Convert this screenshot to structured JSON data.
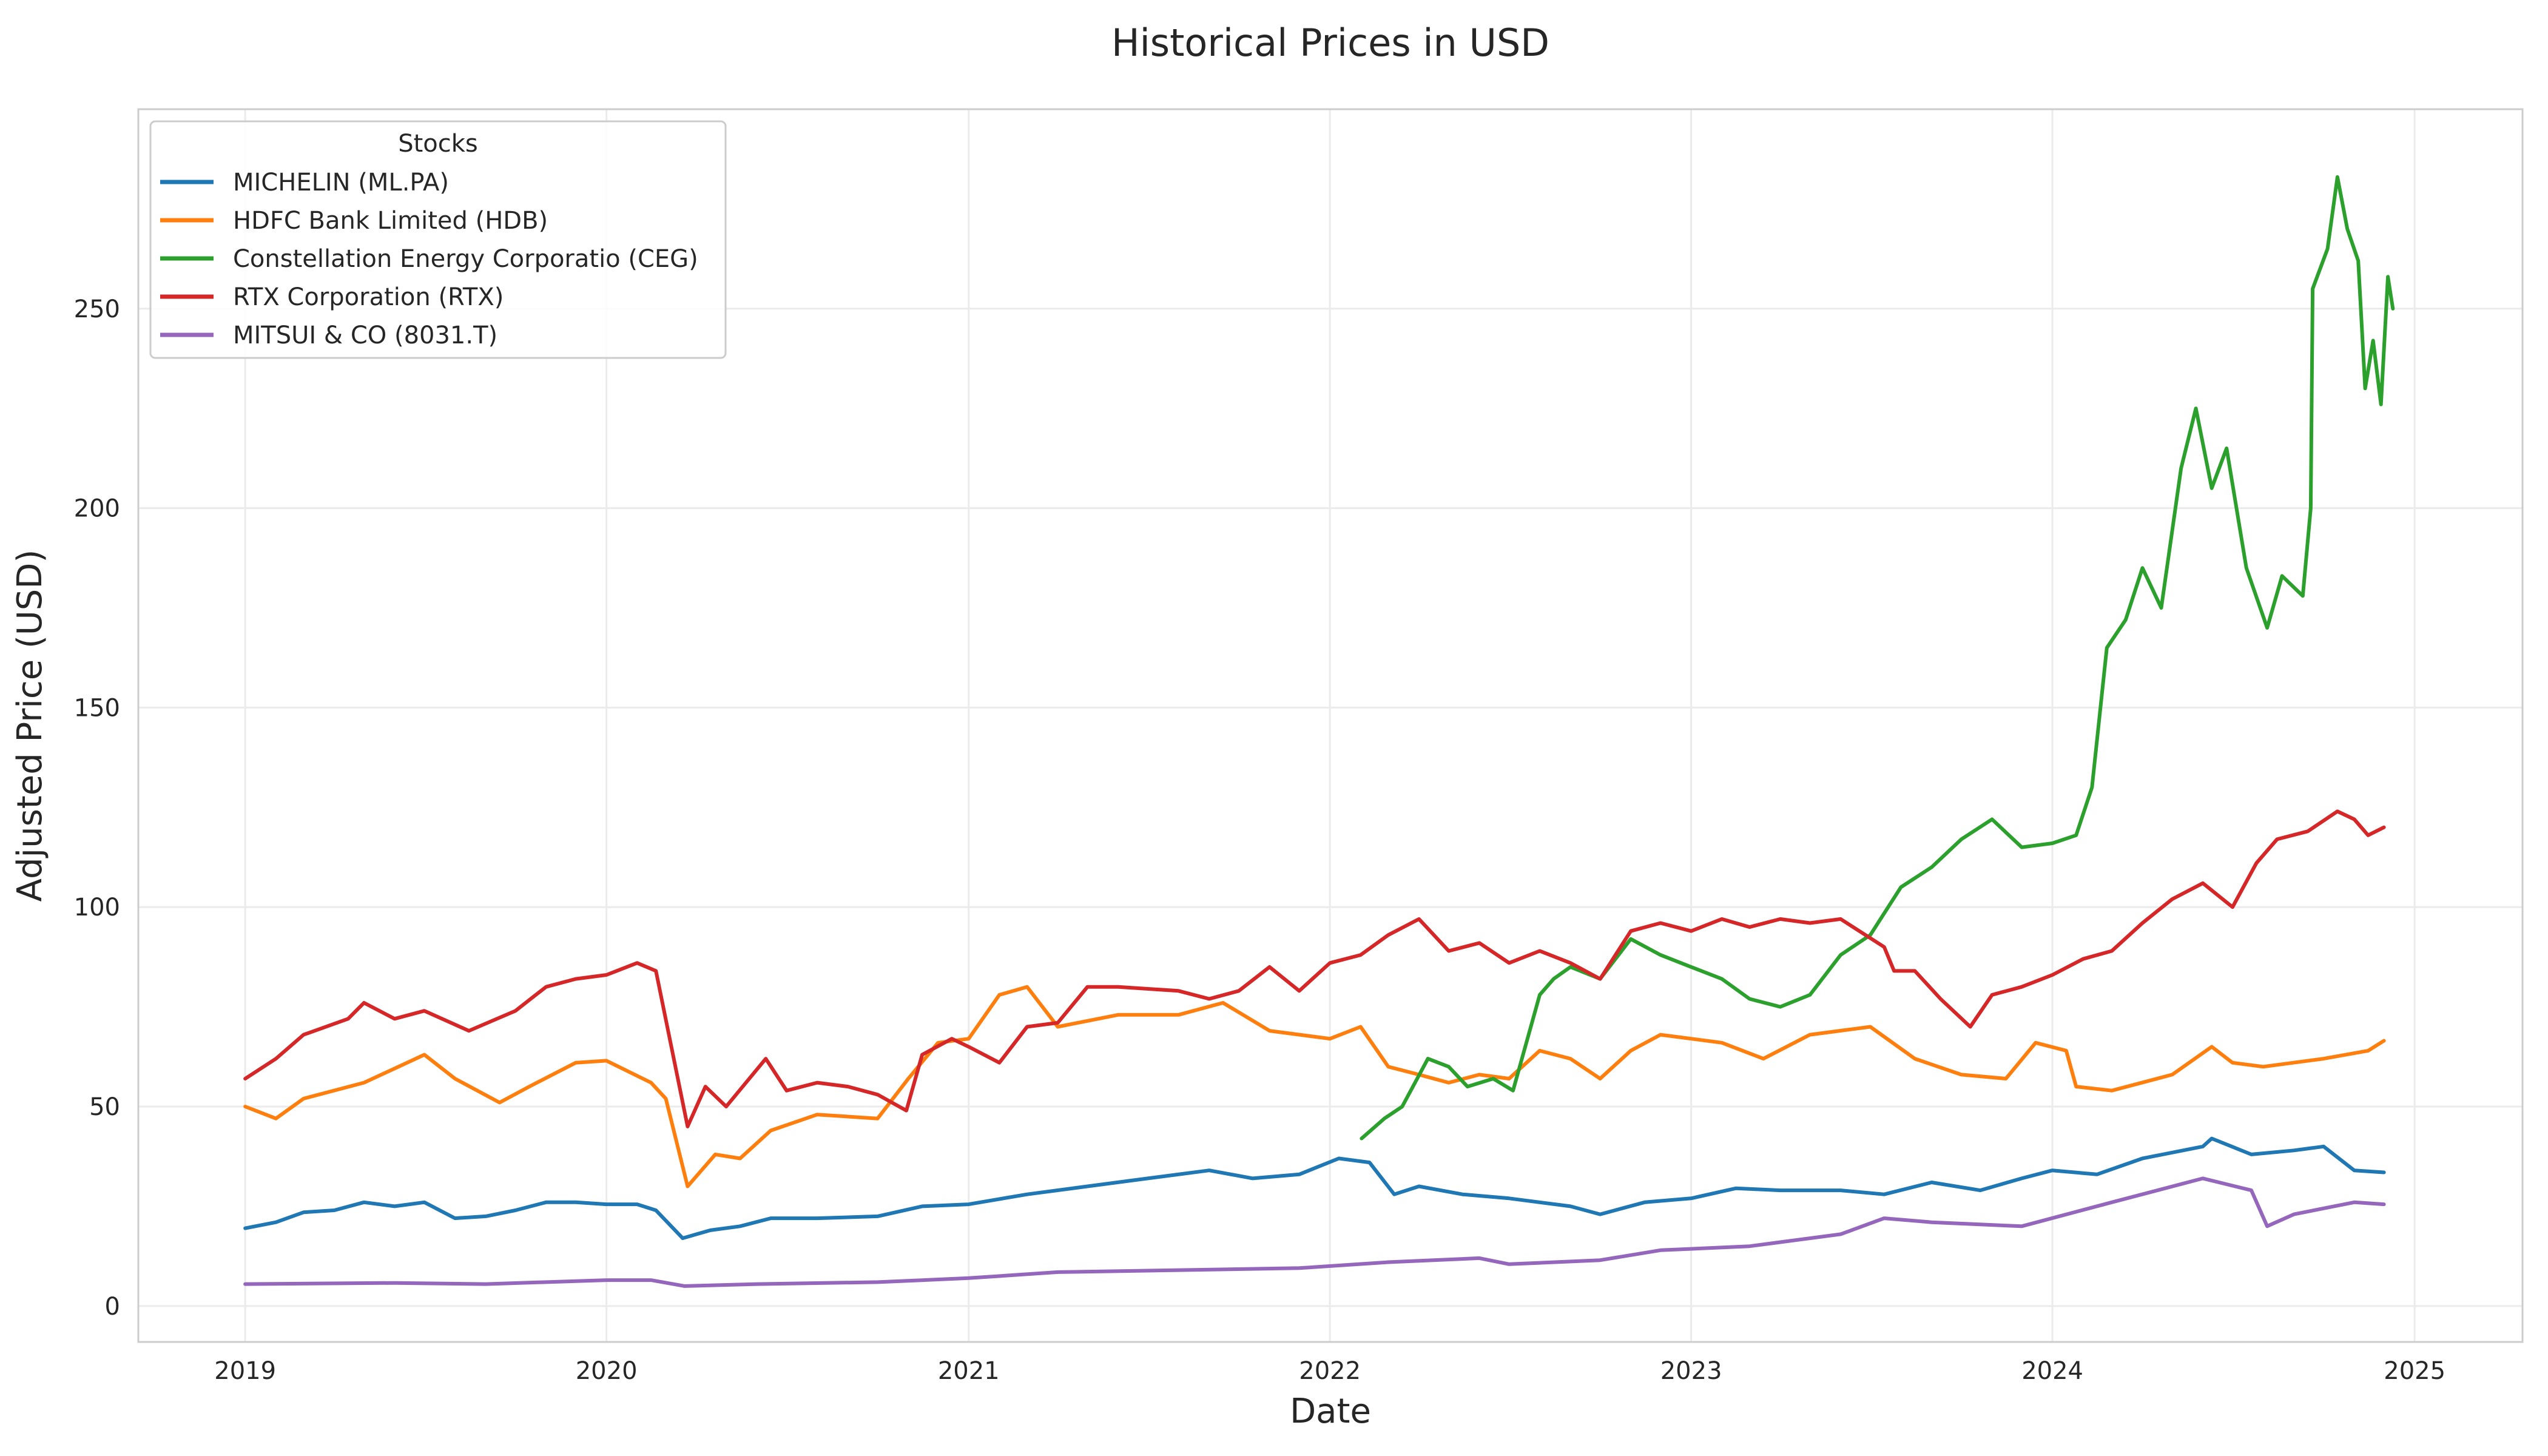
{
  "chart_data": {
    "type": "line",
    "title": "Historical Prices in USD",
    "xlabel": "Date",
    "ylabel": "Adjusted Price (USD)",
    "x_ticks": [
      "2019",
      "2020",
      "2021",
      "2022",
      "2023",
      "2024",
      "2025"
    ],
    "y_ticks": [
      "0",
      "50",
      "100",
      "150",
      "200",
      "250"
    ],
    "xlim": [
      "2018-09-15",
      "2025-04-20"
    ],
    "ylim": [
      -9,
      300
    ],
    "grid": true,
    "legend": {
      "title": "Stocks",
      "placement": "top-left"
    },
    "series": [
      {
        "name": "MICHELIN (ML.PA)",
        "color": "#1f77b4",
        "points": [
          [
            "2019-01-01",
            19.5
          ],
          [
            "2019-02-01",
            21
          ],
          [
            "2019-03-01",
            23.5
          ],
          [
            "2019-04-01",
            24
          ],
          [
            "2019-05-01",
            26
          ],
          [
            "2019-06-01",
            25
          ],
          [
            "2019-07-01",
            26
          ],
          [
            "2019-08-01",
            22
          ],
          [
            "2019-09-01",
            22.5
          ],
          [
            "2019-10-01",
            24
          ],
          [
            "2019-11-01",
            26
          ],
          [
            "2019-12-01",
            26
          ],
          [
            "2020-01-01",
            25.5
          ],
          [
            "2020-02-01",
            25.5
          ],
          [
            "2020-02-20",
            24
          ],
          [
            "2020-03-18",
            17
          ],
          [
            "2020-04-15",
            19
          ],
          [
            "2020-05-15",
            20
          ],
          [
            "2020-06-15",
            22
          ],
          [
            "2020-08-01",
            22
          ],
          [
            "2020-10-01",
            22.5
          ],
          [
            "2020-11-15",
            25
          ],
          [
            "2021-01-01",
            25.5
          ],
          [
            "2021-03-01",
            28
          ],
          [
            "2021-05-01",
            30
          ],
          [
            "2021-07-01",
            32
          ],
          [
            "2021-09-01",
            34
          ],
          [
            "2021-10-15",
            32
          ],
          [
            "2021-12-01",
            33
          ],
          [
            "2022-01-10",
            37
          ],
          [
            "2022-02-10",
            36
          ],
          [
            "2022-03-07",
            28
          ],
          [
            "2022-04-01",
            30
          ],
          [
            "2022-05-15",
            28
          ],
          [
            "2022-07-01",
            27
          ],
          [
            "2022-09-01",
            25
          ],
          [
            "2022-10-01",
            23
          ],
          [
            "2022-11-15",
            26
          ],
          [
            "2023-01-01",
            27
          ],
          [
            "2023-02-15",
            29.5
          ],
          [
            "2023-04-01",
            29
          ],
          [
            "2023-06-01",
            29
          ],
          [
            "2023-07-15",
            28
          ],
          [
            "2023-09-01",
            31
          ],
          [
            "2023-10-20",
            29
          ],
          [
            "2023-12-01",
            32
          ],
          [
            "2024-01-01",
            34
          ],
          [
            "2024-02-15",
            33
          ],
          [
            "2024-04-01",
            37
          ],
          [
            "2024-06-01",
            40
          ],
          [
            "2024-06-10",
            42
          ],
          [
            "2024-07-20",
            38
          ],
          [
            "2024-09-01",
            39
          ],
          [
            "2024-10-01",
            40
          ],
          [
            "2024-11-01",
            34
          ],
          [
            "2024-12-01",
            33.5
          ]
        ]
      },
      {
        "name": "HDFC Bank Limited (HDB)",
        "color": "#ff7f0e",
        "points": [
          [
            "2019-01-01",
            50
          ],
          [
            "2019-02-01",
            47
          ],
          [
            "2019-03-01",
            52
          ],
          [
            "2019-05-01",
            56
          ],
          [
            "2019-07-01",
            63
          ],
          [
            "2019-08-01",
            57
          ],
          [
            "2019-09-15",
            51
          ],
          [
            "2019-10-15",
            55
          ],
          [
            "2019-12-01",
            61
          ],
          [
            "2020-01-01",
            61.5
          ],
          [
            "2020-02-15",
            56
          ],
          [
            "2020-03-01",
            52
          ],
          [
            "2020-03-23",
            30
          ],
          [
            "2020-04-20",
            38
          ],
          [
            "2020-05-15",
            37
          ],
          [
            "2020-06-15",
            44
          ],
          [
            "2020-08-01",
            48
          ],
          [
            "2020-10-01",
            47
          ],
          [
            "2020-11-01",
            57
          ],
          [
            "2020-12-01",
            66
          ],
          [
            "2021-01-01",
            67
          ],
          [
            "2021-02-01",
            78
          ],
          [
            "2021-03-01",
            80
          ],
          [
            "2021-04-01",
            70
          ],
          [
            "2021-06-01",
            73
          ],
          [
            "2021-08-01",
            73
          ],
          [
            "2021-09-15",
            76
          ],
          [
            "2021-11-01",
            69
          ],
          [
            "2022-01-01",
            67
          ],
          [
            "2022-02-01",
            70
          ],
          [
            "2022-03-01",
            60
          ],
          [
            "2022-04-01",
            58
          ],
          [
            "2022-05-01",
            56
          ],
          [
            "2022-06-01",
            58
          ],
          [
            "2022-07-01",
            57
          ],
          [
            "2022-08-01",
            64
          ],
          [
            "2022-09-01",
            62
          ],
          [
            "2022-10-01",
            57
          ],
          [
            "2022-11-01",
            64
          ],
          [
            "2022-12-01",
            68
          ],
          [
            "2023-02-01",
            66
          ],
          [
            "2023-03-15",
            62
          ],
          [
            "2023-05-01",
            68
          ],
          [
            "2023-07-01",
            70
          ],
          [
            "2023-08-15",
            62
          ],
          [
            "2023-10-01",
            58
          ],
          [
            "2023-11-15",
            57
          ],
          [
            "2023-12-15",
            66
          ],
          [
            "2024-01-15",
            64
          ],
          [
            "2024-01-25",
            55
          ],
          [
            "2024-03-01",
            54
          ],
          [
            "2024-05-01",
            58
          ],
          [
            "2024-06-10",
            65
          ],
          [
            "2024-07-01",
            61
          ],
          [
            "2024-08-01",
            60
          ],
          [
            "2024-10-01",
            62
          ],
          [
            "2024-11-15",
            64
          ],
          [
            "2024-12-01",
            66.5
          ]
        ]
      },
      {
        "name": "Constellation Energy Corporatio (CEG)",
        "color": "#2ca02c",
        "points": [
          [
            "2022-02-02",
            42
          ],
          [
            "2022-02-25",
            47
          ],
          [
            "2022-03-15",
            50
          ],
          [
            "2022-04-10",
            62
          ],
          [
            "2022-05-01",
            60
          ],
          [
            "2022-05-20",
            55
          ],
          [
            "2022-06-15",
            57
          ],
          [
            "2022-07-05",
            54
          ],
          [
            "2022-08-01",
            78
          ],
          [
            "2022-08-15",
            82
          ],
          [
            "2022-09-01",
            85
          ],
          [
            "2022-10-01",
            82
          ],
          [
            "2022-11-01",
            92
          ],
          [
            "2022-12-01",
            88
          ],
          [
            "2023-01-01",
            85
          ],
          [
            "2023-02-01",
            82
          ],
          [
            "2023-03-01",
            77
          ],
          [
            "2023-04-01",
            75
          ],
          [
            "2023-05-01",
            78
          ],
          [
            "2023-06-01",
            88
          ],
          [
            "2023-07-01",
            93
          ],
          [
            "2023-08-01",
            105
          ],
          [
            "2023-09-01",
            110
          ],
          [
            "2023-10-01",
            117
          ],
          [
            "2023-11-01",
            122
          ],
          [
            "2023-12-01",
            115
          ],
          [
            "2024-01-01",
            116
          ],
          [
            "2024-01-25",
            118
          ],
          [
            "2024-02-10",
            130
          ],
          [
            "2024-02-25",
            165
          ],
          [
            "2024-03-15",
            172
          ],
          [
            "2024-04-01",
            185
          ],
          [
            "2024-04-20",
            175
          ],
          [
            "2024-05-10",
            210
          ],
          [
            "2024-05-25",
            225
          ],
          [
            "2024-06-10",
            205
          ],
          [
            "2024-06-25",
            215
          ],
          [
            "2024-07-15",
            185
          ],
          [
            "2024-08-05",
            170
          ],
          [
            "2024-08-20",
            183
          ],
          [
            "2024-09-10",
            178
          ],
          [
            "2024-09-18",
            200
          ],
          [
            "2024-09-20",
            255
          ],
          [
            "2024-10-05",
            265
          ],
          [
            "2024-10-15",
            283
          ],
          [
            "2024-10-25",
            270
          ],
          [
            "2024-11-05",
            262
          ],
          [
            "2024-11-12",
            230
          ],
          [
            "2024-11-20",
            242
          ],
          [
            "2024-11-28",
            226
          ],
          [
            "2024-12-05",
            258
          ],
          [
            "2024-12-10",
            250
          ]
        ]
      },
      {
        "name": "RTX Corporation (RTX)",
        "color": "#d62728",
        "points": [
          [
            "2019-01-01",
            57
          ],
          [
            "2019-02-01",
            62
          ],
          [
            "2019-03-01",
            68
          ],
          [
            "2019-04-15",
            72
          ],
          [
            "2019-05-01",
            76
          ],
          [
            "2019-06-01",
            72
          ],
          [
            "2019-07-01",
            74
          ],
          [
            "2019-08-15",
            69
          ],
          [
            "2019-10-01",
            74
          ],
          [
            "2019-11-01",
            80
          ],
          [
            "2019-12-01",
            82
          ],
          [
            "2020-01-01",
            83
          ],
          [
            "2020-02-01",
            86
          ],
          [
            "2020-02-20",
            84
          ],
          [
            "2020-03-23",
            45
          ],
          [
            "2020-04-10",
            55
          ],
          [
            "2020-05-01",
            50
          ],
          [
            "2020-06-10",
            62
          ],
          [
            "2020-07-01",
            54
          ],
          [
            "2020-08-01",
            56
          ],
          [
            "2020-09-01",
            55
          ],
          [
            "2020-10-01",
            53
          ],
          [
            "2020-10-30",
            49
          ],
          [
            "2020-11-15",
            63
          ],
          [
            "2020-12-15",
            67
          ],
          [
            "2021-01-01",
            65
          ],
          [
            "2021-02-01",
            61
          ],
          [
            "2021-03-01",
            70
          ],
          [
            "2021-04-01",
            71
          ],
          [
            "2021-05-01",
            80
          ],
          [
            "2021-06-01",
            80
          ],
          [
            "2021-08-01",
            79
          ],
          [
            "2021-09-01",
            77
          ],
          [
            "2021-10-01",
            79
          ],
          [
            "2021-11-01",
            85
          ],
          [
            "2021-12-01",
            79
          ],
          [
            "2022-01-01",
            86
          ],
          [
            "2022-02-01",
            88
          ],
          [
            "2022-03-01",
            93
          ],
          [
            "2022-04-01",
            97
          ],
          [
            "2022-05-01",
            89
          ],
          [
            "2022-06-01",
            91
          ],
          [
            "2022-07-01",
            86
          ],
          [
            "2022-08-01",
            89
          ],
          [
            "2022-09-01",
            86
          ],
          [
            "2022-10-01",
            82
          ],
          [
            "2022-11-01",
            94
          ],
          [
            "2022-12-01",
            96
          ],
          [
            "2023-01-01",
            94
          ],
          [
            "2023-02-01",
            97
          ],
          [
            "2023-03-01",
            95
          ],
          [
            "2023-04-01",
            97
          ],
          [
            "2023-05-01",
            96
          ],
          [
            "2023-06-01",
            97
          ],
          [
            "2023-07-15",
            90
          ],
          [
            "2023-07-25",
            84
          ],
          [
            "2023-08-15",
            84
          ],
          [
            "2023-09-10",
            77
          ],
          [
            "2023-10-10",
            70
          ],
          [
            "2023-11-01",
            78
          ],
          [
            "2023-12-01",
            80
          ],
          [
            "2024-01-01",
            83
          ],
          [
            "2024-02-01",
            87
          ],
          [
            "2024-03-01",
            89
          ],
          [
            "2024-04-01",
            96
          ],
          [
            "2024-05-01",
            102
          ],
          [
            "2024-06-01",
            106
          ],
          [
            "2024-07-01",
            100
          ],
          [
            "2024-07-25",
            111
          ],
          [
            "2024-08-15",
            117
          ],
          [
            "2024-09-15",
            119
          ],
          [
            "2024-10-15",
            124
          ],
          [
            "2024-11-01",
            122
          ],
          [
            "2024-11-15",
            118
          ],
          [
            "2024-12-01",
            120
          ]
        ]
      },
      {
        "name": "MITSUI & CO (8031.T)",
        "color": "#9467bd",
        "points": [
          [
            "2019-01-01",
            5.5
          ],
          [
            "2019-06-01",
            5.8
          ],
          [
            "2019-09-01",
            5.5
          ],
          [
            "2020-01-01",
            6.5
          ],
          [
            "2020-02-15",
            6.5
          ],
          [
            "2020-03-20",
            5
          ],
          [
            "2020-06-01",
            5.5
          ],
          [
            "2020-10-01",
            6
          ],
          [
            "2021-01-01",
            7
          ],
          [
            "2021-04-01",
            8.5
          ],
          [
            "2021-08-01",
            9
          ],
          [
            "2021-12-01",
            9.5
          ],
          [
            "2022-03-01",
            11
          ],
          [
            "2022-06-01",
            12
          ],
          [
            "2022-07-01",
            10.5
          ],
          [
            "2022-10-01",
            11.5
          ],
          [
            "2022-12-01",
            14
          ],
          [
            "2023-03-01",
            15
          ],
          [
            "2023-06-01",
            18
          ],
          [
            "2023-07-15",
            22
          ],
          [
            "2023-09-01",
            21
          ],
          [
            "2023-12-01",
            20
          ],
          [
            "2024-03-01",
            26
          ],
          [
            "2024-06-01",
            32
          ],
          [
            "2024-07-20",
            29
          ],
          [
            "2024-08-05",
            20
          ],
          [
            "2024-09-01",
            23
          ],
          [
            "2024-11-01",
            26
          ],
          [
            "2024-12-01",
            25.5
          ]
        ]
      }
    ]
  }
}
